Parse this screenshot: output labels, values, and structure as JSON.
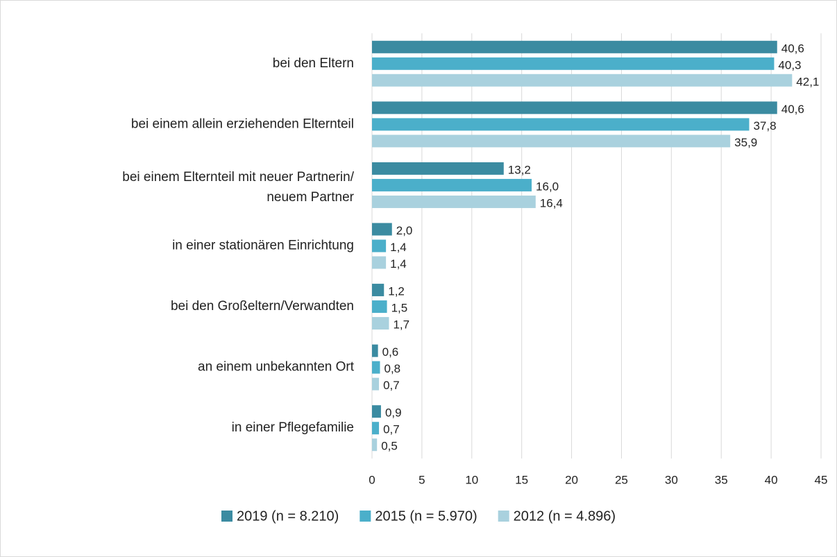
{
  "chart_data": {
    "type": "bar",
    "orientation": "horizontal",
    "categories": [
      "bei den Eltern",
      "bei einem allein erziehenden Elternteil",
      "bei einem Elternteil mit neuer Partnerin/ neuem Partner",
      "in einer stationären Einrichtung",
      "bei den Großeltern/Verwandten",
      "an einem unbekannten Ort",
      "in einer Pflegefamilie"
    ],
    "series": [
      {
        "name": "2019 (n = 8.210)",
        "color": "#3b8ba1",
        "values": [
          40.6,
          40.6,
          13.2,
          2.0,
          1.2,
          0.6,
          0.9
        ],
        "value_labels": [
          "40,6",
          "40,6",
          "13,2",
          "2,0",
          "1,2",
          "0,6",
          "0,9"
        ]
      },
      {
        "name": "2015 (n = 5.970)",
        "color": "#4bafca",
        "values": [
          40.3,
          37.8,
          16.0,
          1.4,
          1.5,
          0.8,
          0.7
        ],
        "value_labels": [
          "40,3",
          "37,8",
          "16,0",
          "1,4",
          "1,5",
          "0,8",
          "0,7"
        ]
      },
      {
        "name": "2012 (n = 4.896)",
        "color": "#a9d1de",
        "values": [
          42.1,
          35.9,
          16.4,
          1.4,
          1.7,
          0.7,
          0.5
        ],
        "value_labels": [
          "42,1",
          "35,9",
          "16,4",
          "1,4",
          "1,7",
          "0,7",
          "0,5"
        ]
      }
    ],
    "xlim": [
      0,
      45
    ],
    "xticks": [
      0,
      5,
      10,
      15,
      20,
      25,
      30,
      35,
      40,
      45
    ],
    "grid": true,
    "legend": "bottom"
  }
}
